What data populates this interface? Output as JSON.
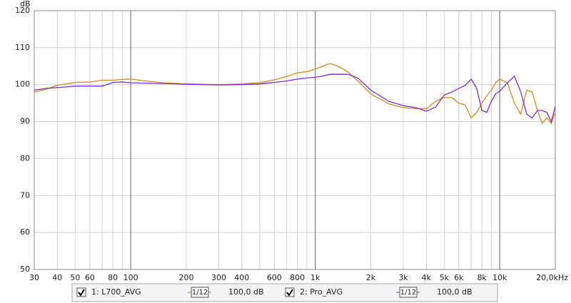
{
  "chart_data": {
    "type": "line",
    "y_label": "dB",
    "log_x": true,
    "xlim": [
      30,
      20000
    ],
    "ylim": [
      50,
      120
    ],
    "xticks": [
      30,
      40,
      50,
      60,
      80,
      100,
      200,
      300,
      400,
      600,
      800,
      {
        "value": 1000,
        "label": "1k"
      },
      {
        "value": 2000,
        "label": "2k"
      },
      {
        "value": 3000,
        "label": "3k"
      },
      {
        "value": 4000,
        "label": "4k"
      },
      {
        "value": 5000,
        "label": "5k"
      },
      {
        "value": 6000,
        "label": "6k"
      },
      {
        "value": 8000,
        "label": "8k"
      },
      {
        "value": 10000,
        "label": "10k"
      },
      {
        "value": 20000,
        "label": "20,0kHz"
      }
    ],
    "xgrid_unlabeled": [
      70,
      90,
      500,
      700,
      900,
      7000,
      9000
    ],
    "yticks": [
      50,
      60,
      70,
      80,
      90,
      100,
      110,
      120
    ],
    "grid": true,
    "x": [
      30,
      35,
      40,
      50,
      60,
      70,
      80,
      90,
      100,
      120,
      150,
      200,
      300,
      400,
      500,
      600,
      700,
      800,
      900,
      1000,
      1100,
      1200,
      1300,
      1500,
      1700,
      2000,
      2500,
      3000,
      3500,
      4000,
      4500,
      5000,
      5500,
      6000,
      6500,
      7000,
      7500,
      8000,
      8500,
      9000,
      9500,
      10000,
      11000,
      12000,
      13000,
      14000,
      15000,
      16000,
      17000,
      18000,
      19000,
      20000
    ],
    "series": [
      {
        "name": "1: L700_AVG",
        "color": "#d98a1c",
        "smoothing": "1/12",
        "offset": "100,0 dB",
        "values": [
          98,
          98.8,
          99.8,
          100.6,
          100.7,
          101.2,
          101.2,
          101.4,
          101.5,
          101,
          100.5,
          100.2,
          100,
          100.2,
          100.5,
          101.3,
          102.2,
          103.2,
          103.5,
          104.2,
          105,
          105.7,
          105.2,
          103.5,
          101,
          97.5,
          94.8,
          93.8,
          93.5,
          93.5,
          95.5,
          96.5,
          96.5,
          95,
          94.5,
          91,
          92.5,
          95,
          97,
          98.5,
          100.5,
          101.5,
          100.5,
          95,
          92,
          98.5,
          98,
          93,
          89.5,
          91,
          89.5,
          92.5
        ]
      },
      {
        "name": "2: Pro_AVG",
        "color": "#7a2ee0",
        "smoothing": "1/12",
        "offset": "100,0 dB",
        "values": [
          98.5,
          99,
          99.2,
          99.6,
          99.6,
          99.6,
          100.6,
          100.7,
          100.5,
          100.4,
          100.3,
          100.1,
          99.9,
          100,
          100.2,
          100.6,
          101,
          101.5,
          101.8,
          102,
          102.3,
          102.8,
          102.8,
          102.8,
          101.8,
          98.5,
          95.5,
          94.3,
          93.8,
          92.8,
          94,
          97.2,
          98,
          99,
          99.8,
          101.5,
          99,
          93,
          92.5,
          95.5,
          97.5,
          98.2,
          100.5,
          102.3,
          98,
          92,
          91,
          93,
          93,
          92.5,
          90,
          94
        ]
      }
    ]
  }
}
